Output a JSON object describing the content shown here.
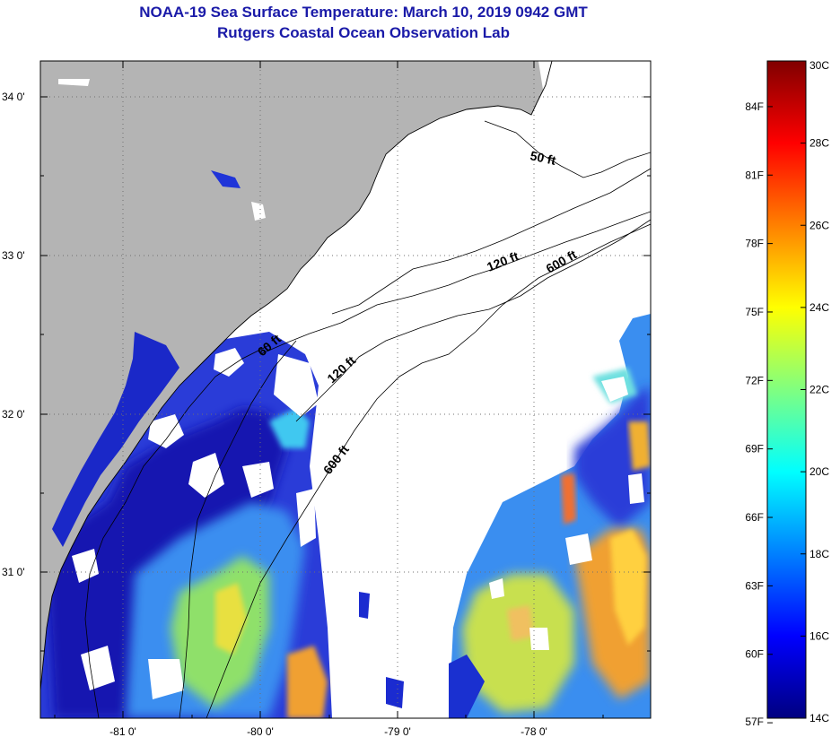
{
  "title": "NOAA-19 Sea Surface Temperature:  March 10, 2019 0942 GMT",
  "subtitle": "Rutgers Coastal Ocean Observation Lab",
  "map": {
    "lon_ticks": [
      "-81 0'",
      "-80 0'",
      "-79 0'",
      "-78 0'"
    ],
    "lat_ticks": [
      "34 0'",
      "33 0'",
      "32 0'",
      "31 0'"
    ],
    "contours": [
      {
        "name": "50 ft",
        "label": "50 ft"
      },
      {
        "name": "120 ft upper",
        "label": "120 ft"
      },
      {
        "name": "600 ft upper",
        "label": "600 ft"
      },
      {
        "name": "120 ft lower",
        "label": "120 ft"
      },
      {
        "name": "600 ft lower",
        "label": "600 ft"
      },
      {
        "name": "60 ft",
        "label": "60 ft"
      }
    ],
    "colors": {
      "land": "#b4b4b4",
      "cloud": "#ffffff"
    }
  },
  "colorbar": {
    "celsius": [
      "30C",
      "28C",
      "26C",
      "24C",
      "22C",
      "20C",
      "18C",
      "16C",
      "14C"
    ],
    "fahrenheit": [
      "84F",
      "81F",
      "78F",
      "75F",
      "72F",
      "69F",
      "66F",
      "63F",
      "60F",
      "57F"
    ],
    "stops": [
      "#000080",
      "#0000ff",
      "#0080ff",
      "#00ffff",
      "#80ff80",
      "#ffff00",
      "#ff8000",
      "#ff0000",
      "#800000"
    ]
  }
}
